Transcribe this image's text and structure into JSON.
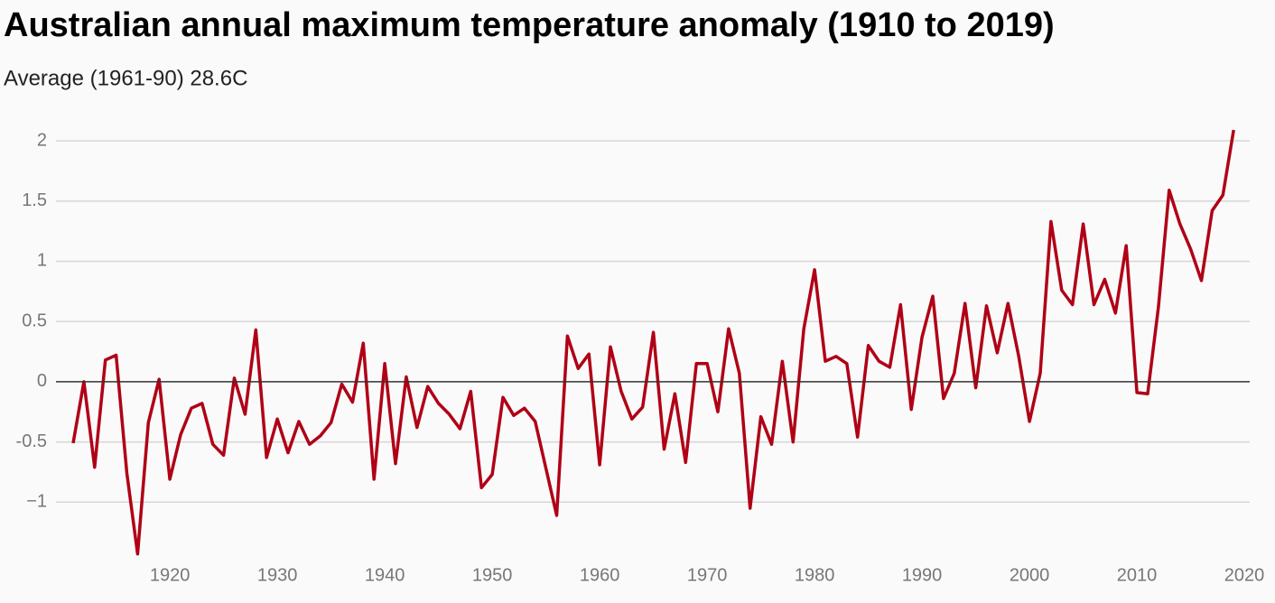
{
  "chart_data": {
    "type": "line",
    "title": "Australian annual maximum temperature anomaly (1910 to 2019)",
    "subtitle": "Average (1961-90) 28.6C",
    "x": [
      1911,
      1912,
      1913,
      1914,
      1915,
      1916,
      1917,
      1918,
      1919,
      1920,
      1921,
      1922,
      1923,
      1924,
      1925,
      1926,
      1927,
      1928,
      1929,
      1930,
      1931,
      1932,
      1933,
      1934,
      1935,
      1936,
      1937,
      1938,
      1939,
      1940,
      1941,
      1942,
      1943,
      1944,
      1945,
      1946,
      1947,
      1948,
      1949,
      1950,
      1951,
      1952,
      1953,
      1954,
      1955,
      1956,
      1957,
      1958,
      1959,
      1960,
      1961,
      1962,
      1963,
      1964,
      1965,
      1966,
      1967,
      1968,
      1969,
      1970,
      1971,
      1972,
      1973,
      1974,
      1975,
      1976,
      1977,
      1978,
      1979,
      1980,
      1981,
      1982,
      1983,
      1984,
      1985,
      1986,
      1987,
      1988,
      1989,
      1990,
      1991,
      1992,
      1993,
      1994,
      1995,
      1996,
      1997,
      1998,
      1999,
      2000,
      2001,
      2002,
      2003,
      2004,
      2005,
      2006,
      2007,
      2008,
      2009,
      2010,
      2011,
      2012,
      2013,
      2014,
      2015,
      2016,
      2017,
      2018,
      2019
    ],
    "series": [
      {
        "name": "Anomaly",
        "color": "#b00016",
        "values": [
          -0.51,
          0,
          -0.71,
          0.18,
          0.22,
          -0.76,
          -1.43,
          -0.34,
          0.02,
          -0.81,
          -0.44,
          -0.22,
          -0.18,
          -0.52,
          -0.61,
          0.03,
          -0.27,
          0.43,
          -0.63,
          -0.31,
          -0.59,
          -0.33,
          -0.52,
          -0.45,
          -0.34,
          -0.02,
          -0.17,
          0.32,
          -0.81,
          0.15,
          -0.68,
          0.04,
          -0.38,
          -0.04,
          -0.18,
          -0.27,
          -0.39,
          -0.08,
          -0.88,
          -0.77,
          -0.13,
          -0.28,
          -0.22,
          -0.33,
          -0.72,
          -1.11,
          0.38,
          0.11,
          0.23,
          -0.69,
          0.29,
          -0.08,
          -0.31,
          -0.21,
          0.41,
          -0.56,
          -0.1,
          -0.67,
          0.15,
          0.15,
          -0.25,
          0.44,
          0.07,
          -1.05,
          -0.29,
          -0.52,
          0.17,
          -0.5,
          0.44,
          0.93,
          0.17,
          0.21,
          0.15,
          -0.46,
          0.3,
          0.17,
          0.12,
          0.64,
          -0.23,
          0.37,
          0.71,
          -0.14,
          0.07,
          0.65,
          -0.05,
          0.63,
          0.24,
          0.65,
          0.21,
          -0.33,
          0.07,
          1.33,
          0.76,
          0.64,
          1.31,
          0.64,
          0.85,
          0.57,
          1.13,
          -0.09,
          -0.1,
          0.62,
          1.59,
          1.31,
          1.1,
          0.84,
          1.42,
          1.55,
          2.09
        ]
      }
    ],
    "xlim": [
      1909.4,
      2020.5
    ],
    "xticks": [
      1920,
      1930,
      1940,
      1950,
      1960,
      1970,
      1980,
      1990,
      2000,
      2010,
      2020
    ],
    "ylim": [
      -1.5,
      2.15
    ],
    "yticks": [
      {
        "value": -1,
        "label": "−1"
      },
      {
        "value": -0.5,
        "label": "-0.5"
      },
      0,
      0.5,
      1,
      1.5,
      2
    ],
    "grid": true
  }
}
